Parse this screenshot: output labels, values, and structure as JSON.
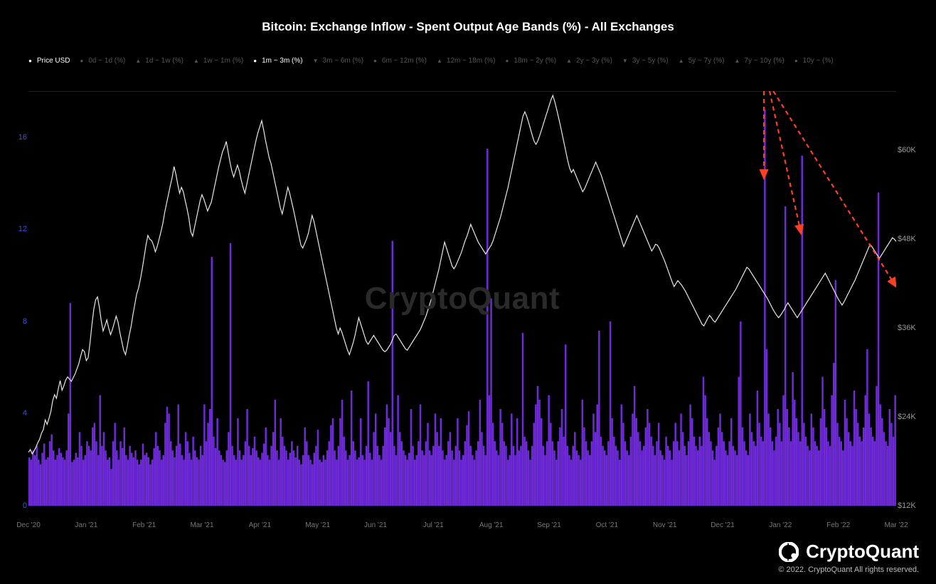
{
  "title": {
    "text": "Bitcoin: Exchange Inflow - Spent Output Age Bands (%) - All Exchanges",
    "color": "#ffffff",
    "fontsize": 17
  },
  "watermark": {
    "text": "CryptoQuant",
    "color": "#2a2a2a",
    "fontsize": 44
  },
  "footer": {
    "brand": "CryptoQuant",
    "copyright": "© 2022. CryptoQuant All rights reserved."
  },
  "legend": {
    "fontsize": 10,
    "active_color": "#ffffff",
    "inactive_color": "#555555",
    "price_color": "#ffffff",
    "items": [
      {
        "label": "Price USD",
        "marker": "dot",
        "active": true
      },
      {
        "label": "0d ~ 1d (%)",
        "marker": "dot",
        "active": false
      },
      {
        "label": "1d ~ 1w (%)",
        "marker": "tri-up",
        "active": false
      },
      {
        "label": "1w ~ 1m (%)",
        "marker": "tri-up",
        "active": false
      },
      {
        "label": "1m ~ 3m (%)",
        "marker": "dot",
        "active": true
      },
      {
        "label": "3m ~ 6m (%)",
        "marker": "tri-dn",
        "active": false
      },
      {
        "label": "6m ~ 12m (%)",
        "marker": "dot",
        "active": false
      },
      {
        "label": "12m ~ 18m (%)",
        "marker": "tri-up",
        "active": false
      },
      {
        "label": "18m ~ 2y (%)",
        "marker": "dot",
        "active": false
      },
      {
        "label": "2y ~ 3y (%)",
        "marker": "tri-up",
        "active": false
      },
      {
        "label": "3y ~ 5y (%)",
        "marker": "tri-dn",
        "active": false
      },
      {
        "label": "5y ~ 7y (%)",
        "marker": "tri-up",
        "active": false
      },
      {
        "label": "7y ~ 10y (%)",
        "marker": "tri-up",
        "active": false
      },
      {
        "label": "10y ~ (%)",
        "marker": "dot",
        "active": false
      }
    ]
  },
  "chart": {
    "background_color": "#000000",
    "plot_border_color": "#222222",
    "x": {
      "categories": [
        "Dec '20",
        "Jan '21",
        "Feb '21",
        "Mar '21",
        "Apr '21",
        "May '21",
        "Jun '21",
        "Jul '21",
        "Aug '21",
        "Sep '21",
        "Oct '21",
        "Nov '21",
        "Dec '21",
        "Jan '22",
        "Feb '22",
        "Mar '22"
      ],
      "tick_color": "#777777",
      "fontsize": 10
    },
    "y_left": {
      "min": 0,
      "max": 18,
      "ticks": [
        0,
        4,
        8,
        12,
        16
      ],
      "color": "#3a54d6",
      "fontsize": 11
    },
    "y_right": {
      "min": 12000,
      "max": 68000,
      "ticks": [
        12000,
        24000,
        36000,
        48000,
        60000
      ],
      "labels": [
        "$12K",
        "$24K",
        "$36K",
        "$48K",
        "$60K"
      ],
      "color": "#999999",
      "fontsize": 11
    },
    "bars": {
      "color": "#6f2bd9",
      "series_name": "1m ~ 3m (%)",
      "values": [
        2.1,
        2.0,
        2.4,
        2.2,
        2.6,
        2.0,
        1.8,
        2.3,
        2.7,
        2.0,
        2.1,
        2.8,
        3.1,
        2.4,
        2.0,
        2.2,
        2.5,
        2.3,
        2.1,
        2.0,
        2.4,
        4.0,
        8.8,
        1.9,
        2.0,
        2.3,
        2.1,
        3.2,
        2.6,
        2.0,
        2.2,
        2.8,
        2.6,
        2.4,
        3.4,
        3.6,
        2.8,
        2.2,
        4.8,
        2.6,
        3.2,
        2.4,
        2.0,
        2.1,
        1.6,
        2.8,
        3.6,
        2.4,
        2.0,
        2.8,
        2.5,
        3.4,
        2.2,
        2.0,
        2.6,
        2.3,
        2.1,
        2.4,
        2.0,
        1.8,
        2.0,
        2.7,
        2.2,
        2.3,
        2.1,
        1.8,
        2.0,
        2.5,
        3.2,
        2.6,
        2.4,
        2.0,
        2.2,
        3.6,
        4.3,
        4.0,
        2.8,
        2.4,
        2.1,
        2.6,
        4.4,
        2.7,
        2.2,
        2.0,
        3.2,
        2.8,
        2.3,
        2.0,
        3.0,
        2.4,
        2.1,
        2.0,
        2.6,
        2.2,
        4.4,
        2.8,
        3.6,
        4.2,
        10.8,
        3.0,
        2.5,
        3.8,
        2.4,
        2.2,
        2.0,
        1.9,
        2.4,
        3.2,
        11.4,
        2.6,
        2.2,
        2.0,
        3.8,
        2.4,
        2.0,
        2.2,
        2.8,
        4.2,
        2.6,
        2.2,
        2.5,
        3.0,
        2.4,
        2.1,
        2.0,
        2.3,
        2.7,
        3.4,
        2.2,
        2.0,
        2.6,
        3.2,
        4.6,
        2.4,
        2.0,
        3.8,
        3.0,
        2.6,
        2.4,
        2.0,
        2.3,
        2.8,
        2.4,
        2.1,
        2.6,
        2.0,
        1.8,
        2.2,
        3.4,
        2.8,
        2.2,
        2.0,
        1.8,
        2.3,
        2.6,
        3.3,
        2.0,
        1.9,
        2.2,
        2.0,
        2.4,
        2.8,
        3.5,
        3.8,
        2.4,
        2.0,
        2.6,
        3.8,
        4.6,
        3.0,
        2.4,
        2.0,
        2.2,
        5.0,
        2.8,
        2.4,
        2.0,
        2.1,
        3.8,
        2.2,
        2.0,
        2.6,
        5.4,
        2.3,
        2.0,
        3.2,
        4.0,
        2.6,
        2.2,
        2.0,
        2.6,
        3.4,
        4.4,
        3.8,
        3.2,
        11.5,
        2.6,
        2.2,
        4.8,
        3.2,
        2.8,
        2.4,
        2.2,
        2.0,
        2.3,
        4.2,
        2.6,
        2.0,
        2.2,
        2.8,
        4.4,
        2.4,
        2.2,
        2.8,
        3.6,
        2.4,
        2.2,
        2.6,
        4.0,
        3.2,
        2.6,
        3.8,
        2.4,
        2.0,
        2.2,
        2.8,
        3.2,
        2.4,
        2.0,
        2.6,
        3.8,
        2.4,
        2.0,
        2.2,
        2.8,
        3.5,
        4.1,
        2.6,
        2.2,
        2.0,
        2.4,
        2.8,
        4.6,
        3.2,
        2.6,
        2.2,
        15.5,
        4.8,
        9.0,
        3.6,
        2.8,
        2.4,
        2.2,
        4.2,
        3.6,
        2.8,
        2.6,
        2.0,
        2.2,
        4.0,
        2.6,
        2.2,
        3.8,
        2.4,
        2.6,
        7.5,
        3.0,
        2.8,
        2.4,
        2.0,
        2.6,
        3.6,
        4.4,
        5.2,
        4.6,
        3.8,
        2.6,
        2.2,
        2.8,
        4.8,
        3.6,
        2.8,
        2.4,
        2.0,
        2.8,
        3.4,
        4.2,
        3.0,
        7.0,
        2.6,
        2.2,
        2.0,
        2.6,
        3.2,
        2.4,
        2.2,
        2.0,
        4.6,
        3.4,
        2.8,
        2.4,
        2.2,
        2.8,
        4.0,
        3.2,
        4.4,
        7.6,
        3.0,
        2.6,
        2.4,
        2.2,
        2.8,
        8.0,
        3.8,
        3.0,
        2.6,
        2.4,
        2.0,
        4.4,
        3.6,
        2.8,
        2.4,
        2.2,
        3.0,
        4.0,
        5.2,
        3.8,
        3.2,
        2.8,
        2.4,
        2.6,
        3.4,
        4.2,
        3.6,
        3.0,
        2.6,
        2.2,
        2.8,
        3.6,
        2.4,
        2.2,
        2.0,
        3.0,
        2.6,
        2.4,
        2.0,
        2.8,
        3.6,
        2.8,
        2.4,
        4.0,
        3.2,
        2.6,
        2.2,
        2.8,
        4.4,
        3.8,
        3.0,
        2.6,
        2.4,
        3.0,
        2.6,
        5.6,
        4.8,
        3.8,
        3.2,
        2.8,
        2.4,
        2.0,
        2.6,
        3.4,
        4.0,
        3.2,
        2.8,
        2.4,
        2.2,
        2.8,
        3.8,
        2.6,
        2.4,
        2.2,
        5.6,
        8.0,
        3.4,
        2.8,
        2.4,
        2.2,
        4.0,
        3.2,
        2.8,
        2.6,
        5.0,
        3.6,
        3.0,
        2.8,
        17.2,
        6.8,
        4.0,
        3.4,
        2.8,
        2.4,
        3.0,
        4.2,
        3.6,
        2.8,
        4.8,
        13.0,
        4.2,
        3.4,
        2.8,
        5.8,
        4.6,
        3.8,
        3.2,
        2.8,
        15.2,
        3.6,
        3.0,
        2.6,
        2.4,
        4.0,
        3.4,
        2.8,
        2.6,
        2.4,
        3.8,
        5.6,
        4.2,
        3.4,
        2.8,
        2.6,
        4.8,
        6.2,
        9.8,
        3.6,
        3.0,
        2.8,
        2.4,
        4.6,
        3.8,
        3.2,
        2.8,
        2.6,
        5.0,
        4.2,
        3.6,
        3.0,
        2.8,
        3.4,
        4.8,
        6.8,
        4.0,
        3.4,
        3.0,
        2.8,
        5.2,
        13.6,
        4.4,
        3.8,
        3.2,
        2.8,
        2.6,
        4.2,
        3.6,
        3.0,
        4.8
      ]
    },
    "line": {
      "color": "#e8e8e8",
      "width": 1.2,
      "series_name": "Price USD",
      "values": [
        19200,
        19600,
        19000,
        19400,
        19900,
        20500,
        21000,
        21800,
        22300,
        23600,
        23000,
        23800,
        24700,
        26200,
        27000,
        26500,
        27800,
        28900,
        27600,
        28200,
        29000,
        29400,
        29100,
        28800,
        29300,
        29800,
        30500,
        31200,
        32200,
        33100,
        32800,
        31600,
        32000,
        34000,
        36400,
        38500,
        39800,
        40200,
        38800,
        37000,
        35600,
        36300,
        37100,
        36000,
        35100,
        35800,
        36700,
        37600,
        36800,
        35400,
        34200,
        33000,
        32400,
        33600,
        35000,
        36200,
        37800,
        39200,
        40600,
        41400,
        42600,
        44000,
        45600,
        47200,
        48500,
        48000,
        47800,
        47200,
        46300,
        47000,
        48000,
        49000,
        50100,
        51600,
        52800,
        54000,
        55200,
        56300,
        57800,
        56800,
        55400,
        54200,
        55000,
        54400,
        53200,
        52100,
        50800,
        49000,
        48400,
        49600,
        50800,
        52000,
        53200,
        54000,
        53400,
        52600,
        51800,
        52400,
        53000,
        54200,
        55400,
        56600,
        57800,
        58800,
        59800,
        60400,
        61200,
        59800,
        58400,
        57200,
        56400,
        57200,
        58000,
        57200,
        56000,
        55000,
        54200,
        55400,
        56600,
        57800,
        59000,
        60200,
        61400,
        62400,
        63200,
        64000,
        62800,
        61400,
        60200,
        59000,
        58200,
        57000,
        55800,
        54600,
        53400,
        52200,
        51400,
        52600,
        53800,
        55000,
        54200,
        53100,
        52000,
        50800,
        49600,
        48400,
        47200,
        46800,
        47400,
        48000,
        48800,
        50000,
        51200,
        50400,
        49200,
        48000,
        46800,
        45600,
        44400,
        43200,
        42000,
        40800,
        39600,
        38400,
        37200,
        36000,
        35200,
        36000,
        35400,
        34600,
        33800,
        33000,
        32400,
        33200,
        34000,
        35000,
        36200,
        37400,
        36600,
        35800,
        35000,
        34200,
        33800,
        34200,
        34600,
        35000,
        34600,
        34200,
        33800,
        33400,
        33000,
        32800,
        33000,
        33400,
        33800,
        34400,
        35000,
        35200,
        34800,
        34400,
        34000,
        33600,
        33200,
        33000,
        33400,
        33800,
        34200,
        34600,
        35000,
        35400,
        35800,
        36400,
        37000,
        37600,
        38400,
        39200,
        40000,
        41000,
        42000,
        43000,
        44000,
        45200,
        46400,
        47600,
        46800,
        46000,
        45200,
        44400,
        44000,
        44400,
        45000,
        45600,
        46200,
        47000,
        47800,
        48400,
        49200,
        50000,
        49400,
        48800,
        48200,
        47600,
        47200,
        46800,
        46400,
        46000,
        46400,
        46800,
        47200,
        47800,
        48600,
        49400,
        50200,
        51000,
        52000,
        53000,
        54000,
        55000,
        56200,
        57400,
        58600,
        59800,
        61000,
        62200,
        63400,
        64600,
        65200,
        64600,
        63800,
        62900,
        62000,
        61200,
        60800,
        61300,
        62000,
        62800,
        63600,
        64400,
        65200,
        66000,
        66800,
        67400,
        66600,
        65600,
        64500,
        63400,
        62200,
        61000,
        59800,
        58600,
        57600,
        57000,
        57400,
        56800,
        56200,
        55600,
        55000,
        54400,
        54800,
        55400,
        56000,
        56600,
        57200,
        57800,
        58400,
        57800,
        57200,
        56600,
        55800,
        55000,
        54200,
        53400,
        52600,
        51800,
        51000,
        50200,
        49400,
        48600,
        47800,
        47000,
        47600,
        48200,
        48800,
        49400,
        50000,
        50600,
        51200,
        50600,
        50000,
        49400,
        48800,
        48200,
        47600,
        47000,
        46400,
        46800,
        47300,
        47200,
        46800,
        46200,
        45600,
        45000,
        44300,
        43600,
        42900,
        42200,
        41600,
        42000,
        42400,
        42100,
        41800,
        41400,
        41000,
        40500,
        40000,
        39500,
        39000,
        38500,
        38000,
        37500,
        37000,
        36500,
        36300,
        36800,
        37300,
        37700,
        37400,
        37000,
        36800,
        37200,
        37600,
        38000,
        38400,
        38800,
        39200,
        39600,
        40000,
        40400,
        40800,
        41200,
        41700,
        42200,
        42700,
        43200,
        43700,
        44200,
        44000,
        43600,
        43200,
        42800,
        42400,
        42000,
        41600,
        41200,
        40800,
        40400,
        40000,
        39500,
        39000,
        38500,
        38100,
        37700,
        37400,
        37700,
        38100,
        38500,
        39000,
        39400,
        39000,
        38600,
        38200,
        37800,
        37400,
        37800,
        38200,
        38600,
        39000,
        39400,
        39800,
        40200,
        40600,
        41000,
        41400,
        41800,
        42200,
        42600,
        43000,
        43400,
        42900,
        42400,
        41900,
        41400,
        40900,
        40400,
        39900,
        39500,
        39100,
        39500,
        40000,
        40500,
        41000,
        41500,
        42000,
        42500,
        43100,
        43700,
        44300,
        44900,
        45500,
        46100,
        46700,
        47300,
        47000,
        46600,
        46200,
        45800,
        45400,
        45800,
        46200,
        46600,
        47000,
        47400,
        47800,
        48200,
        48000,
        47700
      ]
    },
    "annotations": {
      "arrow_color": "#ff4020",
      "dash": "6 5",
      "width": 2.2,
      "arrows": [
        {
          "from_idx": 395,
          "from_pct": 18.0,
          "to_idx": 395,
          "to_pct": 14.2
        },
        {
          "from_idx": 398,
          "from_pct": 18.0,
          "to_idx": 415,
          "to_pct": 11.8
        },
        {
          "from_idx": 400,
          "from_pct": 18.0,
          "to_idx": 466,
          "to_pct": 9.5
        }
      ]
    }
  }
}
